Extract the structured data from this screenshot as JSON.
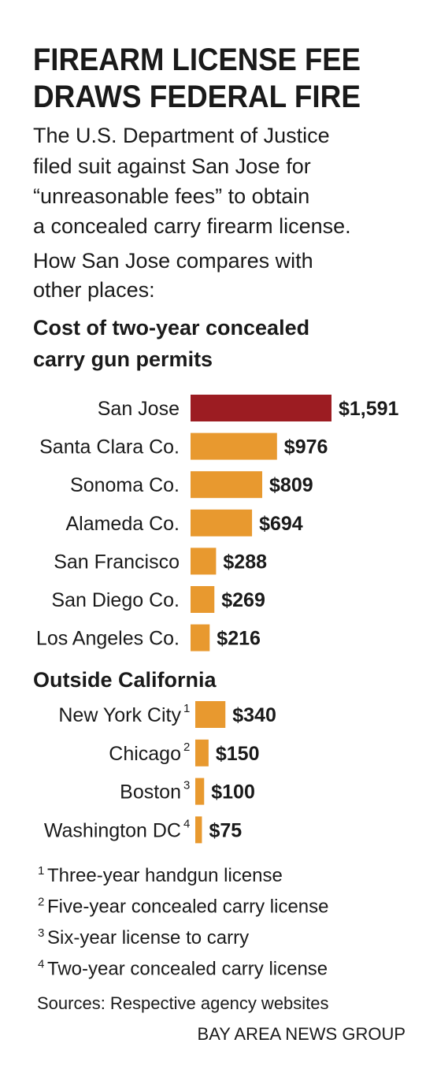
{
  "header": {
    "title": [
      "FIREARM LICENSE FEE",
      "DRAWS FEDERAL FIRE"
    ],
    "description": [
      "The U.S. Department of Justice",
      "filed suit against San Jose for",
      "“unreasonable fees” to obtain",
      "a concealed carry firearm license."
    ],
    "intro": [
      "How San Jose compares with",
      "other places:"
    ]
  },
  "chart_data": [
    {
      "type": "bar",
      "title": [
        "Cost of two-year concealed",
        "carry gun permits"
      ],
      "categories": [
        "San Jose",
        "Santa Clara Co.",
        "Sonoma Co.",
        "Alameda Co.",
        "San Francisco",
        "San Diego Co.",
        "Los Angeles Co."
      ],
      "values": [
        1591,
        976,
        809,
        694,
        288,
        269,
        216
      ],
      "value_labels": [
        "$1,591",
        "$976",
        "$809",
        "$694",
        "$288",
        "$269",
        "$216"
      ],
      "colors": [
        "#9c1c22",
        "#e8992f",
        "#e8992f",
        "#e8992f",
        "#e8992f",
        "#e8992f",
        "#e8992f"
      ]
    },
    {
      "type": "bar",
      "title": [
        "Outside California"
      ],
      "categories": [
        "New York City",
        "Chicago",
        "Boston",
        "Washington DC"
      ],
      "category_notes": [
        "1",
        "2",
        "3",
        "4"
      ],
      "values": [
        340,
        150,
        100,
        75
      ],
      "value_labels": [
        "$340",
        "$150",
        "$100",
        "$75"
      ],
      "colors": [
        "#e8992f",
        "#e8992f",
        "#e8992f",
        "#e8992f"
      ]
    }
  ],
  "footer": {
    "notes": [
      {
        "marker": "1",
        "text": "Three-year handgun license"
      },
      {
        "marker": "2",
        "text": "Five-year concealed carry license"
      },
      {
        "marker": "3",
        "text": "Six-year license to carry"
      },
      {
        "marker": "4",
        "text": "Two-year concealed carry license"
      }
    ],
    "source": "Sources: Respective agency websites",
    "credit": "BAY AREA NEWS GROUP"
  }
}
